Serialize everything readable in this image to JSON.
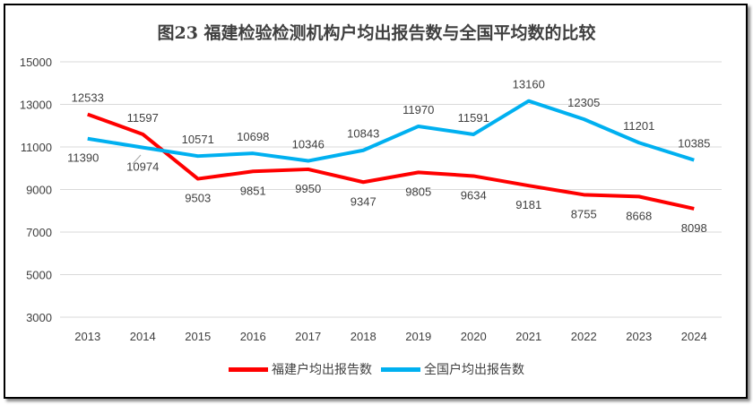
{
  "chart_data": {
    "type": "line",
    "title": "图23  福建检验检测机构户均出报告数与全国平均数的比较",
    "categories": [
      "2013",
      "2014",
      "2015",
      "2016",
      "2017",
      "2018",
      "2019",
      "2020",
      "2021",
      "2022",
      "2023",
      "2024"
    ],
    "series": [
      {
        "name": "福建户均出报告数",
        "color": "#ff0000",
        "values": [
          12533,
          11597,
          9503,
          9851,
          9950,
          9347,
          9805,
          9634,
          9181,
          8755,
          8668,
          8098
        ]
      },
      {
        "name": "全国户均出报告数",
        "color": "#00b0f0",
        "values": [
          11390,
          10974,
          10571,
          10698,
          10346,
          10843,
          11970,
          11591,
          13160,
          12305,
          11201,
          10385
        ]
      }
    ],
    "yticks": [
      3000,
      5000,
      7000,
      9000,
      11000,
      13000,
      15000
    ],
    "ylim": [
      3000,
      15000
    ],
    "xlabel": "",
    "ylabel": "",
    "grid": true,
    "legend": "bottom"
  }
}
